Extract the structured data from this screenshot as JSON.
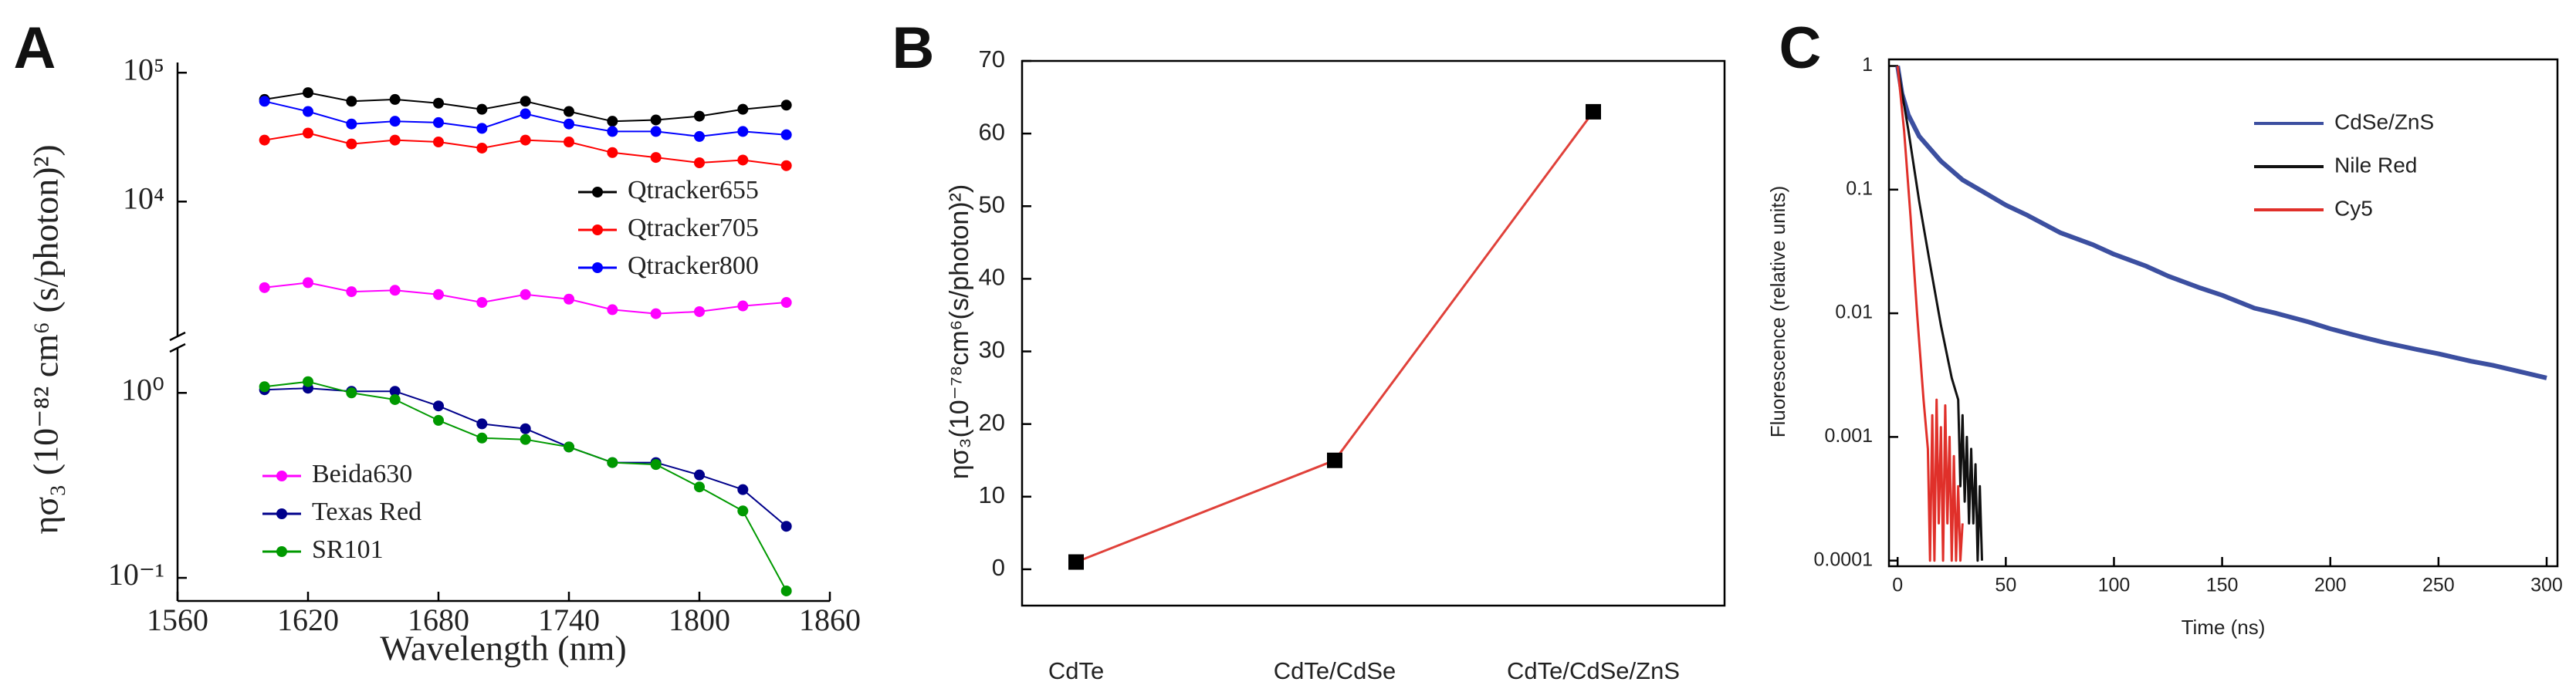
{
  "chart_data": [
    {
      "type": "line",
      "panel_label": "A",
      "xlabel": "Wavelength (nm)",
      "ylabel": "ησ₃ (10⁻⁸² cm⁶ (s/photon)²)",
      "x": [
        1600,
        1620,
        1640,
        1660,
        1680,
        1700,
        1720,
        1740,
        1760,
        1780,
        1800,
        1820,
        1840
      ],
      "xlim": [
        1560,
        1860
      ],
      "xticks": [
        1560,
        1620,
        1680,
        1740,
        1800,
        1860
      ],
      "yscale": "log",
      "ylim": [
        0.075,
        120000
      ],
      "ybreak": [
        1.75,
        900
      ],
      "yticks": [
        {
          "value": 100000,
          "label": "10⁵"
        },
        {
          "value": 10000,
          "label": "10⁴"
        },
        {
          "value": 1,
          "label": "10⁰"
        },
        {
          "value": 0.1,
          "label": "10⁻¹"
        }
      ],
      "marker": "circle",
      "series": [
        {
          "name": "Qtracker655",
          "color": "#000000",
          "values": [
            62000,
            70000,
            60000,
            62000,
            58000,
            52000,
            60000,
            50000,
            42000,
            43000,
            46000,
            52000,
            56000
          ]
        },
        {
          "name": "Qtracker705",
          "color": "#ff0000",
          "values": [
            30000,
            34000,
            28000,
            30000,
            29000,
            26000,
            30000,
            29000,
            24000,
            22000,
            20000,
            21000,
            19000
          ]
        },
        {
          "name": "Qtracker800",
          "color": "#0000ff",
          "values": [
            60000,
            50000,
            40000,
            42000,
            41000,
            37000,
            48000,
            40000,
            35000,
            35000,
            32000,
            35000,
            33000
          ]
        },
        {
          "name": "Beida630",
          "color": "#ff00ff",
          "values": [
            2150,
            2350,
            2000,
            2050,
            1900,
            1650,
            1900,
            1750,
            1450,
            1350,
            1400,
            1550,
            1650
          ]
        },
        {
          "name": "Texas Red",
          "color": "#00008b",
          "values": [
            1.04,
            1.06,
            1.02,
            1.02,
            0.85,
            0.68,
            0.64,
            0.51,
            0.42,
            0.42,
            0.36,
            0.3,
            0.19
          ]
        },
        {
          "name": "SR101",
          "color": "#009900",
          "values": [
            1.08,
            1.15,
            1.0,
            0.92,
            0.71,
            0.57,
            0.56,
            0.51,
            0.42,
            0.41,
            0.31,
            0.23,
            0.085
          ]
        }
      ]
    },
    {
      "type": "line",
      "panel_label": "B",
      "ylabel": "ησ₃(10⁻⁷⁸cm⁶(s/photon)²)",
      "categories": [
        "CdTe",
        "CdTe/CdSe",
        "CdTe/CdSe/ZnS"
      ],
      "values": [
        1,
        15,
        63
      ],
      "color": "#e0413a",
      "marker": "square",
      "marker_color": "#000000",
      "ylim": [
        -5,
        70
      ],
      "yticks": [
        0,
        10,
        20,
        30,
        40,
        50,
        60,
        70
      ]
    },
    {
      "type": "line",
      "panel_label": "C",
      "xlabel": "Time (ns)",
      "ylabel": "Fluorescence (relative units)",
      "xlim": [
        -4,
        305
      ],
      "xticks": [
        0,
        50,
        100,
        150,
        200,
        250,
        300
      ],
      "yscale": "log",
      "ylim": [
        9e-05,
        1.13
      ],
      "yticks": [
        1,
        0.1,
        0.01,
        0.001,
        0.0001
      ],
      "series": [
        {
          "name": "CdSe/ZnS",
          "color": "#3c4fa0",
          "x": [
            0,
            2,
            5,
            10,
            20,
            30,
            40,
            50,
            60,
            75,
            90,
            100,
            115,
            125,
            140,
            150,
            165,
            175,
            190,
            200,
            215,
            225,
            240,
            250,
            265,
            275,
            290,
            300
          ],
          "values": [
            1,
            0.6,
            0.4,
            0.27,
            0.17,
            0.12,
            0.095,
            0.075,
            0.062,
            0.045,
            0.036,
            0.03,
            0.024,
            0.02,
            0.016,
            0.014,
            0.011,
            0.01,
            0.0085,
            0.0075,
            0.0064,
            0.0058,
            0.0051,
            0.0047,
            0.0041,
            0.0038,
            0.0033,
            0.003
          ]
        },
        {
          "name": "Nile Red",
          "color": "#111111",
          "x": [
            0,
            5,
            10,
            15,
            20,
            25,
            28,
            29,
            30,
            31,
            32,
            33,
            34,
            35,
            36,
            37,
            38,
            39
          ],
          "values": [
            1,
            0.3,
            0.08,
            0.025,
            0.008,
            0.003,
            0.002,
            0.0004,
            0.0015,
            0.0003,
            0.001,
            0.0002,
            0.0008,
            0.0002,
            0.0006,
            0.0001,
            0.0004,
            0.0001
          ]
        },
        {
          "name": "Cy5",
          "color": "#e0302a",
          "x": [
            0,
            3,
            6,
            9,
            12,
            14,
            15,
            16,
            17,
            18,
            19,
            20,
            21,
            22,
            23,
            24,
            25,
            26,
            27,
            28,
            29,
            30
          ],
          "values": [
            1,
            0.3,
            0.06,
            0.01,
            0.002,
            0.0008,
            0.0001,
            0.0015,
            0.0001,
            0.002,
            0.0002,
            0.0012,
            0.0001,
            0.0018,
            0.0002,
            0.001,
            0.0001,
            0.0007,
            0.0001,
            0.0004,
            0.0001,
            0.0002
          ]
        }
      ]
    }
  ]
}
